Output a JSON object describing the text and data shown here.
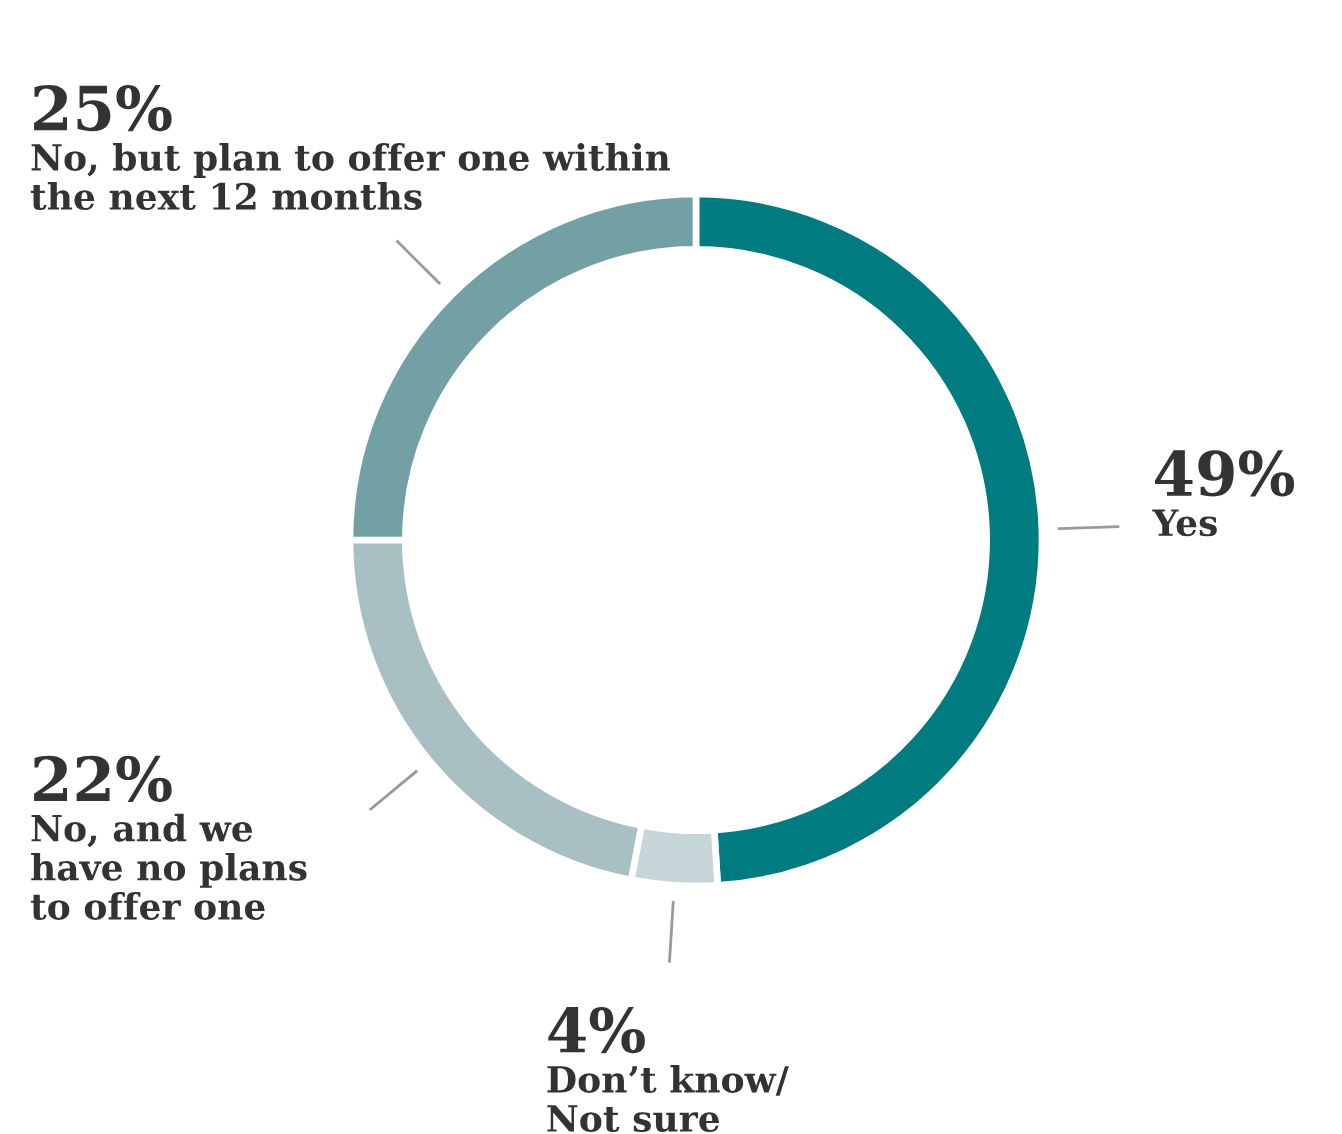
{
  "chart_data": {
    "type": "donut",
    "categories": [
      "Yes",
      "Don’t know/\nNot sure",
      "No, and we\nhave no plans\nto offer one",
      "No, but plan to offer one within\nthe next 12 months"
    ],
    "values": [
      49,
      4,
      22,
      25
    ],
    "value_labels": [
      "49%",
      "4%",
      "22%",
      "25%"
    ],
    "colors": [
      "#007b80",
      "#c6d6d8",
      "#a8c0c3",
      "#73a0a5"
    ]
  }
}
